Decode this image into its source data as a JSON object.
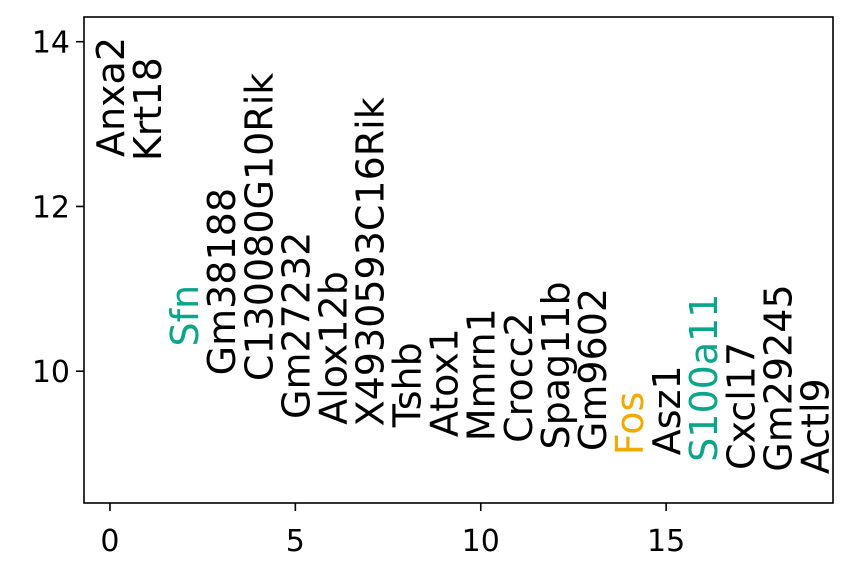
{
  "chart_data": {
    "type": "scatter",
    "title": "",
    "xlabel": "",
    "ylabel": "",
    "xlim": [
      -0.7,
      19.5
    ],
    "ylim": [
      8.4,
      14.3
    ],
    "xticks": [
      0,
      5,
      10,
      15
    ],
    "yticks": [
      10,
      12,
      14
    ],
    "xtick_labels": [
      "0",
      "5",
      "10",
      "15"
    ],
    "ytick_labels": [
      "10",
      "12",
      "14"
    ],
    "grid": false,
    "colors": {
      "default": "#000000",
      "teal": "#0aa58a",
      "orange": "#f2a900"
    },
    "points": [
      {
        "label": "Anxa2",
        "x": 0,
        "y": 12.6,
        "color": "#000000"
      },
      {
        "label": "Krt18",
        "x": 1,
        "y": 12.55,
        "color": "#000000"
      },
      {
        "label": "Sfn",
        "x": 2,
        "y": 10.3,
        "color": "#0aa58a"
      },
      {
        "label": "Gm38188",
        "x": 3,
        "y": 9.95,
        "color": "#000000"
      },
      {
        "label": "C130080G10Rik",
        "x": 4,
        "y": 9.88,
        "color": "#000000"
      },
      {
        "label": "Gm27232",
        "x": 5,
        "y": 9.42,
        "color": "#000000"
      },
      {
        "label": "Alox12b",
        "x": 6,
        "y": 9.35,
        "color": "#000000"
      },
      {
        "label": "X4930593C16Rik",
        "x": 7,
        "y": 9.33,
        "color": "#000000"
      },
      {
        "label": "Tshb",
        "x": 8,
        "y": 9.32,
        "color": "#000000"
      },
      {
        "label": "Atox1",
        "x": 9,
        "y": 9.2,
        "color": "#000000"
      },
      {
        "label": "Mmrn1",
        "x": 10,
        "y": 9.15,
        "color": "#000000"
      },
      {
        "label": "Crocc2",
        "x": 11,
        "y": 9.13,
        "color": "#000000"
      },
      {
        "label": "Spag11b",
        "x": 12,
        "y": 9.05,
        "color": "#000000"
      },
      {
        "label": "Gm9602",
        "x": 13,
        "y": 9.03,
        "color": "#000000"
      },
      {
        "label": "Fos",
        "x": 14,
        "y": 8.98,
        "color": "#f2a900"
      },
      {
        "label": "Asz1",
        "x": 15,
        "y": 8.98,
        "color": "#000000"
      },
      {
        "label": "S100a11",
        "x": 16,
        "y": 8.9,
        "color": "#0aa58a"
      },
      {
        "label": "Cxcl17",
        "x": 17,
        "y": 8.8,
        "color": "#000000"
      },
      {
        "label": "Gm29245",
        "x": 18,
        "y": 8.78,
        "color": "#000000"
      },
      {
        "label": "Actl9",
        "x": 19,
        "y": 8.75,
        "color": "#000000"
      }
    ]
  }
}
